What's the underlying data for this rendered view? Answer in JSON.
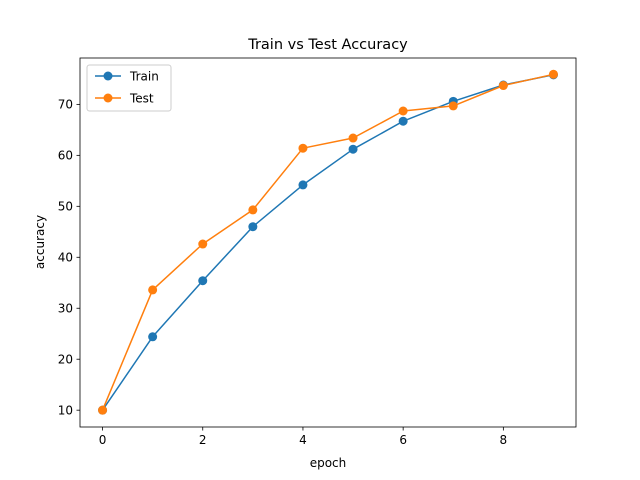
{
  "chart_data": {
    "type": "line",
    "title": "Train vs Test Accuracy",
    "xlabel": "epoch",
    "ylabel": "accuracy",
    "x": [
      0,
      1,
      2,
      3,
      4,
      5,
      6,
      7,
      8,
      9
    ],
    "xticks": [
      0,
      2,
      4,
      6,
      8
    ],
    "yticks": [
      10,
      20,
      30,
      40,
      50,
      60,
      70
    ],
    "xlim": [
      -0.45,
      9.45
    ],
    "ylim": [
      6.7,
      79.1
    ],
    "grid": false,
    "legend_position": "top-left",
    "series": [
      {
        "name": "Train",
        "color": "#1f77b4",
        "marker": "circle",
        "values": [
          10.0,
          24.4,
          35.4,
          46.0,
          54.2,
          61.2,
          66.7,
          70.6,
          73.8,
          75.8
        ]
      },
      {
        "name": "Test",
        "color": "#ff7f0e",
        "marker": "circle",
        "values": [
          10.0,
          33.6,
          42.6,
          49.3,
          61.4,
          63.4,
          68.7,
          69.7,
          73.7,
          75.9
        ]
      }
    ]
  }
}
